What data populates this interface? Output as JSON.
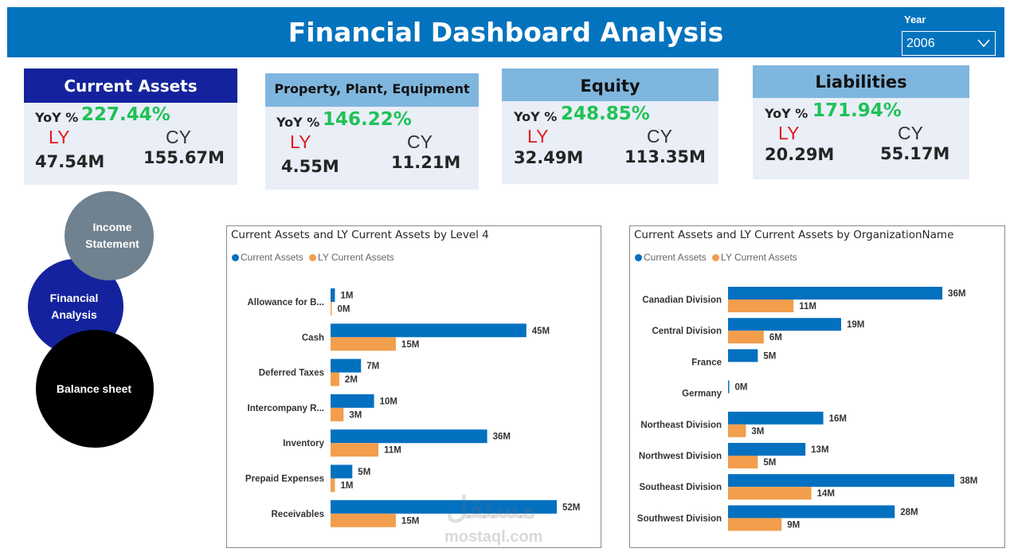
{
  "header": {
    "title": "Financial Dashboard Analysis",
    "year_label": "Year",
    "year_value": "2006"
  },
  "cards": [
    {
      "title": "Current Assets",
      "yoy_label": "YoY %",
      "yoy": "227.44%",
      "ly_label": "LY",
      "cy_label": "CY",
      "ly": "47.54M",
      "cy": "155.67M"
    },
    {
      "title": "Property, Plant, Equipment",
      "yoy_label": "YoY %",
      "yoy": "146.22%",
      "ly_label": "LY",
      "cy_label": "CY",
      "ly": "4.55M",
      "cy": "11.21M"
    },
    {
      "title": "Equity",
      "yoy_label": "YoY %",
      "yoy": "248.85%",
      "ly_label": "LY",
      "cy_label": "CY",
      "ly": "32.49M",
      "cy": "113.35M"
    },
    {
      "title": "Liabilities",
      "yoy_label": "YoY %",
      "yoy": "171.94%",
      "ly_label": "LY",
      "cy_label": "CY",
      "ly": "20.29M",
      "cy": "55.17M"
    }
  ],
  "nav": {
    "income": "Income Statement",
    "financial": "Financial Analysis",
    "balance": "Balance sheet"
  },
  "colors": {
    "header": "#0373bd",
    "current": "#0370c0",
    "ly": "#f29e4c",
    "yoy": "#1fc256",
    "ly_text": "#e3191c",
    "card_dark": "#14239d",
    "card_light": "#7fb6de"
  },
  "legend": {
    "current": "Current Assets",
    "ly": "LY Current Assets"
  },
  "chart_data": [
    {
      "type": "bar",
      "orientation": "horizontal",
      "title": "Current Assets and LY Current Assets by Level 4",
      "categories": [
        "Allowance for B...",
        "Cash",
        "Deferred Taxes",
        "Intercompany R...",
        "Inventory",
        "Prepaid Expenses",
        "Receivables"
      ],
      "series": [
        {
          "name": "Current Assets",
          "values": [
            1,
            45,
            7,
            10,
            36,
            5,
            52
          ],
          "labels": [
            "1M",
            "45M",
            "7M",
            "10M",
            "36M",
            "5M",
            "52M"
          ]
        },
        {
          "name": "LY Current Assets",
          "values": [
            0.1,
            15,
            2,
            3,
            11,
            1,
            15
          ],
          "labels": [
            "0M",
            "15M",
            "2M",
            "3M",
            "11M",
            "1M",
            "15M"
          ]
        }
      ],
      "xlim": [
        0,
        52
      ]
    },
    {
      "type": "bar",
      "orientation": "horizontal",
      "title": "Current Assets and LY Current Assets by OrganizationName",
      "categories": [
        "Canadian Division",
        "Central Division",
        "France",
        "Germany",
        "Northeast Division",
        "Northwest Division",
        "Southeast Division",
        "Southwest Division"
      ],
      "series": [
        {
          "name": "Current Assets",
          "values": [
            36,
            19,
            5,
            0.2,
            16,
            13,
            38,
            28
          ],
          "labels": [
            "36M",
            "19M",
            "5M",
            "0M",
            "16M",
            "13M",
            "38M",
            "28M"
          ]
        },
        {
          "name": "LY Current Assets",
          "values": [
            11,
            6,
            null,
            null,
            3,
            5,
            14,
            9
          ],
          "labels": [
            "11M",
            "6M",
            "",
            "",
            "3M",
            "5M",
            "14M",
            "9M"
          ]
        }
      ],
      "xlim": [
        0,
        38
      ]
    }
  ],
  "watermark": {
    "arabic": "مستقل",
    "site": "mostaql.com"
  }
}
